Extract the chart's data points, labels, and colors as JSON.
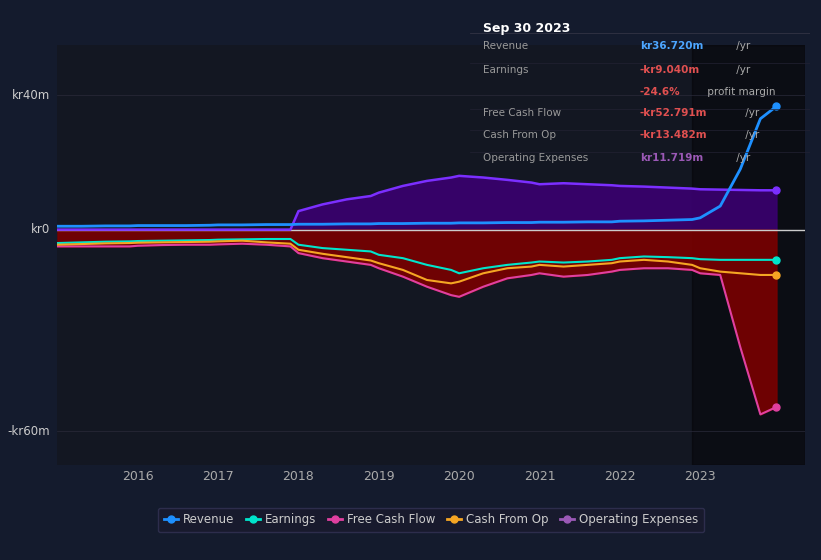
{
  "bg_color": "#141b2d",
  "plot_bg_color": "#131722",
  "ylim": [
    -70,
    55
  ],
  "xlim": [
    2015.0,
    2024.3
  ],
  "x_ticks": [
    2016,
    2017,
    2018,
    2019,
    2020,
    2021,
    2022,
    2023
  ],
  "y_labels": [
    {
      "val": 40,
      "label": "kr40m"
    },
    {
      "val": 0,
      "label": "kr0"
    },
    {
      "val": -60,
      "label": "-kr60m"
    }
  ],
  "info_box": {
    "title": "Sep 30 2023",
    "rows": [
      {
        "label": "Revenue",
        "value": "kr36.720m",
        "suffix": " /yr",
        "value_color": "#4da6ff",
        "has_line": true
      },
      {
        "label": "Earnings",
        "value": "-kr9.040m",
        "suffix": " /yr",
        "value_color": "#e05050",
        "has_line": false
      },
      {
        "label": "",
        "value": "-24.6%",
        "suffix": " profit margin",
        "value_color": "#e05050",
        "has_line": true
      },
      {
        "label": "Free Cash Flow",
        "value": "-kr52.791m",
        "suffix": " /yr",
        "value_color": "#e05050",
        "has_line": true
      },
      {
        "label": "Cash From Op",
        "value": "-kr13.482m",
        "suffix": " /yr",
        "value_color": "#e05050",
        "has_line": true
      },
      {
        "label": "Operating Expenses",
        "value": "kr11.719m",
        "suffix": " /yr",
        "value_color": "#9b59b6",
        "has_line": false
      }
    ]
  },
  "series": {
    "years": [
      2015.0,
      2015.3,
      2015.6,
      2015.9,
      2016.0,
      2016.3,
      2016.6,
      2016.9,
      2017.0,
      2017.3,
      2017.6,
      2017.9,
      2018.0,
      2018.3,
      2018.6,
      2018.9,
      2019.0,
      2019.3,
      2019.6,
      2019.9,
      2020.0,
      2020.3,
      2020.6,
      2020.9,
      2021.0,
      2021.3,
      2021.6,
      2021.9,
      2022.0,
      2022.3,
      2022.6,
      2022.9,
      2023.0,
      2023.25,
      2023.5,
      2023.75,
      2023.95
    ],
    "revenue": [
      1.0,
      1.0,
      1.1,
      1.1,
      1.2,
      1.2,
      1.2,
      1.3,
      1.4,
      1.4,
      1.5,
      1.5,
      1.6,
      1.6,
      1.7,
      1.7,
      1.8,
      1.8,
      1.9,
      1.9,
      2.0,
      2.0,
      2.1,
      2.1,
      2.2,
      2.2,
      2.3,
      2.3,
      2.5,
      2.6,
      2.8,
      3.0,
      3.5,
      7.0,
      18.0,
      33.0,
      36.7
    ],
    "earnings": [
      -4.0,
      -3.8,
      -3.6,
      -3.5,
      -3.4,
      -3.3,
      -3.2,
      -3.1,
      -3.0,
      -2.9,
      -2.8,
      -2.8,
      -4.5,
      -5.5,
      -6.0,
      -6.5,
      -7.5,
      -8.5,
      -10.5,
      -12.0,
      -13.0,
      -11.5,
      -10.5,
      -9.8,
      -9.5,
      -9.8,
      -9.5,
      -9.0,
      -8.5,
      -8.0,
      -8.2,
      -8.5,
      -8.8,
      -9.0,
      -9.0,
      -9.0,
      -9.0
    ],
    "free_cash_flow": [
      -5.0,
      -5.0,
      -5.0,
      -5.0,
      -4.8,
      -4.6,
      -4.5,
      -4.5,
      -4.4,
      -4.2,
      -4.5,
      -5.0,
      -7.0,
      -8.5,
      -9.5,
      -10.5,
      -11.5,
      -14.0,
      -17.0,
      -19.5,
      -20.0,
      -17.0,
      -14.5,
      -13.5,
      -13.0,
      -14.0,
      -13.5,
      -12.5,
      -12.0,
      -11.5,
      -11.5,
      -12.0,
      -13.0,
      -13.5,
      -35.0,
      -55.0,
      -52.8
    ],
    "cash_from_op": [
      -4.5,
      -4.3,
      -4.1,
      -4.0,
      -3.9,
      -3.8,
      -3.7,
      -3.6,
      -3.5,
      -3.3,
      -3.8,
      -4.2,
      -6.0,
      -7.2,
      -8.2,
      -9.2,
      -10.0,
      -12.0,
      -15.0,
      -16.0,
      -15.5,
      -13.0,
      -11.5,
      -11.0,
      -10.5,
      -11.0,
      -10.5,
      -10.0,
      -9.5,
      -9.0,
      -9.5,
      -10.5,
      -11.5,
      -12.5,
      -13.0,
      -13.5,
      -13.5
    ],
    "operating_expenses": [
      0.0,
      0.0,
      0.0,
      0.0,
      0.0,
      0.0,
      0.0,
      0.0,
      0.0,
      0.0,
      0.0,
      0.0,
      5.5,
      7.5,
      9.0,
      10.0,
      11.0,
      13.0,
      14.5,
      15.5,
      16.0,
      15.5,
      14.8,
      14.0,
      13.5,
      13.8,
      13.5,
      13.2,
      13.0,
      12.8,
      12.5,
      12.2,
      12.0,
      11.9,
      11.8,
      11.7,
      11.7
    ]
  },
  "colors": {
    "revenue": "#1e90ff",
    "earnings": "#00e5cc",
    "free_cash_flow": "#e040a0",
    "cash_from_op": "#f5a623",
    "operating_expenses": "#7b2fff"
  },
  "fill_colors": {
    "operating_expenses_fill": "#3a0070",
    "free_cash_flow_fill": "#7a0000"
  },
  "legend": [
    {
      "label": "Revenue",
      "color": "#1e90ff"
    },
    {
      "label": "Earnings",
      "color": "#00e5cc"
    },
    {
      "label": "Free Cash Flow",
      "color": "#e040a0"
    },
    {
      "label": "Cash From Op",
      "color": "#f5a623"
    },
    {
      "label": "Operating Expenses",
      "color": "#9b59b6"
    }
  ]
}
